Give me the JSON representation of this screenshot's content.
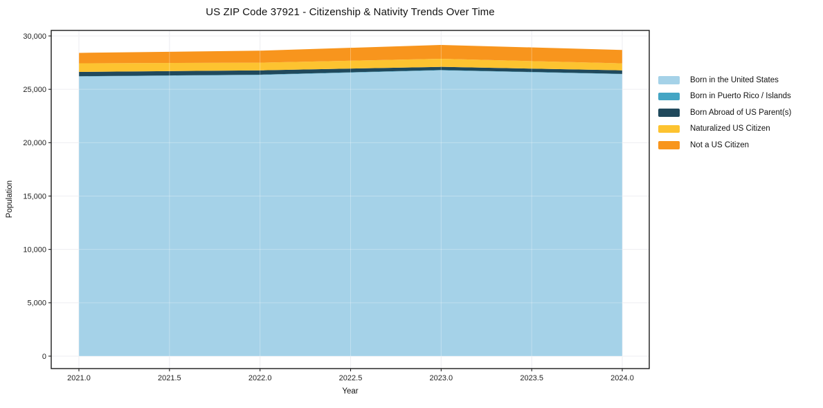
{
  "chart_data": {
    "type": "area",
    "stacked": true,
    "title": "US ZIP Code 37921 - Citizenship & Nativity Trends Over Time",
    "xlabel": "Year",
    "ylabel": "Population",
    "x": [
      2021,
      2022,
      2023,
      2024
    ],
    "xlim": [
      2020.85,
      2024.15
    ],
    "ylim": [
      0,
      30000
    ],
    "grid": true,
    "legend_position": "right-outside",
    "frame_color": "#1a1a1a",
    "background_color": "#ffffff",
    "xticks": [
      {
        "value": 2021.0,
        "label": "2021.0"
      },
      {
        "value": 2021.5,
        "label": "2021.5"
      },
      {
        "value": 2022.0,
        "label": "2022.0"
      },
      {
        "value": 2022.5,
        "label": "2022.5"
      },
      {
        "value": 2023.0,
        "label": "2023.0"
      },
      {
        "value": 2023.5,
        "label": "2023.5"
      },
      {
        "value": 2024.0,
        "label": "2024.0"
      }
    ],
    "yticks": [
      {
        "value": 0,
        "label": "0"
      },
      {
        "value": 5000,
        "label": "5,000"
      },
      {
        "value": 10000,
        "label": "10,000"
      },
      {
        "value": 15000,
        "label": "15,000"
      },
      {
        "value": 20000,
        "label": "20,000"
      },
      {
        "value": 25000,
        "label": "25,000"
      },
      {
        "value": 30000,
        "label": "30,000"
      }
    ],
    "series": [
      {
        "name": "Born in the United States",
        "color": "#a5d2e8",
        "values": [
          26200,
          26350,
          26780,
          26420
        ]
      },
      {
        "name": "Born in Puerto Rico / Islands",
        "color": "#44a5c4",
        "values": [
          25,
          25,
          30,
          25
        ]
      },
      {
        "name": "Born Abroad of US Parent(s)",
        "color": "#20495c",
        "values": [
          405,
          405,
          295,
          335
        ]
      },
      {
        "name": "Naturalized US Citizen",
        "color": "#fdc330",
        "values": [
          810,
          715,
          755,
          650
        ]
      },
      {
        "name": "Not a US Citizen",
        "color": "#f8951d",
        "values": [
          975,
          1125,
          1300,
          1260
        ]
      }
    ]
  }
}
